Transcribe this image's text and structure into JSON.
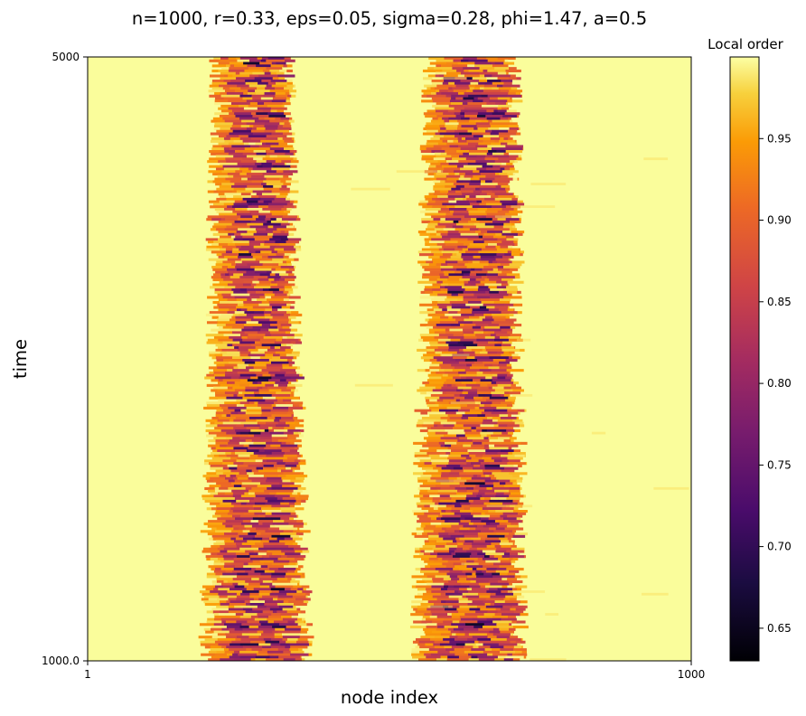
{
  "chart_data": {
    "type": "heatmap",
    "title": "n=1000, r=0.33, eps=0.05, sigma=0.28, phi=1.47, a=0.5",
    "xlabel": "node index",
    "ylabel": "time",
    "x_ticks": [
      "1",
      "1000"
    ],
    "y_ticks": [
      "1000.0",
      "5000"
    ],
    "xlim": [
      1,
      1000
    ],
    "ylim": [
      1000,
      5000
    ],
    "colorbar": {
      "label": "Local order",
      "colormap": "inferno",
      "range": [
        0.63,
        1.0
      ],
      "ticks": [
        "0.65",
        "0.70",
        "0.75",
        "0.80",
        "0.85",
        "0.90",
        "0.95"
      ],
      "tick_values": [
        0.65,
        0.7,
        0.75,
        0.8,
        0.85,
        0.9,
        0.95
      ]
    },
    "background_value": 0.995,
    "bands": [
      {
        "name": "",
        "center_start": 273,
        "center_end": 280,
        "half_width_start": 62,
        "half_width_end": 84,
        "min_value": 0.66
      },
      {
        "name": "",
        "center_start": 637,
        "center_end": 632,
        "half_width_start": 72,
        "half_width_end": 88,
        "min_value": 0.66
      }
    ],
    "grid": false
  }
}
